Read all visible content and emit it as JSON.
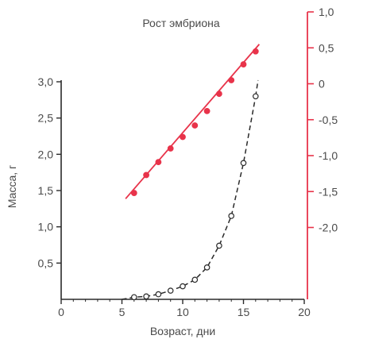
{
  "chart_data": {
    "type": "scatter",
    "title": "Рост эмбриона",
    "xlabel": "Возраст, дни",
    "ylabel": "Масса, г",
    "xlim": [
      0,
      20
    ],
    "ylim": [
      0,
      3.0
    ],
    "y2lim": [
      -3.0,
      1.0
    ],
    "x_ticks": [
      0,
      5,
      10,
      15,
      20
    ],
    "y_ticks": [
      0.5,
      1.0,
      1.5,
      2.0,
      2.5,
      3.0
    ],
    "y_tick_labels": [
      "0,5",
      "1,0",
      "1,5",
      "2,0",
      "2,5",
      "3,0"
    ],
    "y2_ticks": [
      1.0,
      0.5,
      0,
      -0.5,
      -1.0,
      -1.5,
      -2.0
    ],
    "y2_tick_labels": [
      "1,0",
      "0,5",
      "0",
      "-0,5",
      "-1,0",
      "-1,5",
      "-2,0"
    ],
    "grid": false,
    "colors": {
      "mass": "#2a2a2a",
      "log": "#e8334a",
      "axis": "#2a2a2a"
    },
    "series": [
      {
        "axis": "left",
        "style": "open-circles-dashed-curve",
        "x": [
          6,
          7,
          8,
          9,
          10,
          11,
          12,
          13,
          14,
          15,
          16
        ],
        "values": [
          0.03,
          0.04,
          0.07,
          0.12,
          0.18,
          0.27,
          0.44,
          0.74,
          1.15,
          1.88,
          2.8
        ]
      },
      {
        "axis": "right",
        "style": "filled-circles-fit-line",
        "x": [
          6,
          7,
          8,
          9,
          10,
          11,
          12,
          13,
          14,
          15,
          16
        ],
        "values": [
          -1.52,
          -1.27,
          -1.09,
          -0.9,
          -0.74,
          -0.58,
          -0.38,
          -0.14,
          0.05,
          0.27,
          0.45
        ],
        "fit_line": {
          "x": [
            5.3,
            16.3
          ],
          "values": [
            -1.6,
            0.55
          ]
        }
      }
    ]
  }
}
